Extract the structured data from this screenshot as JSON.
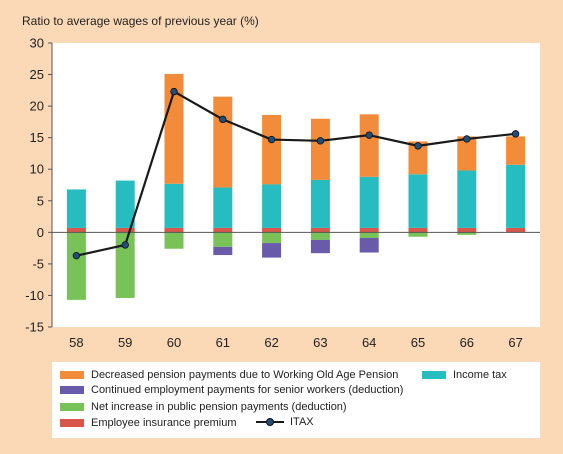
{
  "chart_data": {
    "type": "bar",
    "title": "Ratio to average wages of previous year (%)",
    "xlabel": "",
    "ylabel": "",
    "ylim": [
      -15,
      30
    ],
    "yticks": [
      30,
      25,
      20,
      15,
      10,
      5,
      0,
      -5,
      -10,
      -15
    ],
    "categories": [
      "58",
      "59",
      "60",
      "61",
      "62",
      "63",
      "64",
      "65",
      "66",
      "67"
    ],
    "grid": false,
    "legend_position": "bottom",
    "series": [
      {
        "name": "Employee insurance premium",
        "type": "bar",
        "color": "#d9574a",
        "values": [
          0.7,
          0.7,
          0.7,
          0.7,
          0.7,
          0.7,
          0.7,
          0.7,
          0.7,
          0.7
        ]
      },
      {
        "name": "Income tax",
        "type": "bar",
        "color": "#26bcc0",
        "values": [
          6.1,
          7.5,
          7.0,
          6.4,
          6.9,
          7.6,
          8.1,
          8.5,
          9.1,
          10.0
        ]
      },
      {
        "name": "Decreased pension payments due to Working Old Age Pension",
        "type": "bar",
        "color": "#f28c3a",
        "values": [
          0,
          0,
          17.4,
          14.4,
          11.0,
          9.7,
          9.9,
          5.2,
          5.4,
          4.5
        ]
      },
      {
        "name": "Net increase in public pension payments (deduction)",
        "type": "bar",
        "color": "#78c257",
        "values": [
          -10.7,
          -10.4,
          -2.6,
          -2.3,
          -1.7,
          -1.2,
          -0.9,
          -0.7,
          -0.4,
          0
        ]
      },
      {
        "name": "Continued employment payments for senior workers (deduction)",
        "type": "bar",
        "color": "#6a5aaa",
        "values": [
          0,
          0,
          0,
          -1.3,
          -2.3,
          -2.1,
          -2.3,
          0,
          0,
          0
        ]
      },
      {
        "name": "ITAX",
        "type": "line",
        "color": "#1a1a1a",
        "marker_color": "#1f4e79",
        "values": [
          -3.7,
          -2.0,
          22.3,
          17.9,
          14.7,
          14.5,
          15.4,
          13.7,
          14.8,
          15.6
        ]
      }
    ]
  },
  "legend": {
    "orange": "Decreased pension payments due to Working Old Age Pension",
    "teal": "Income tax",
    "purple": "Continued employment payments for senior workers (deduction)",
    "green": "Net increase in public pension payments (deduction)",
    "red": "Employee insurance premium",
    "line": "ITAX"
  }
}
